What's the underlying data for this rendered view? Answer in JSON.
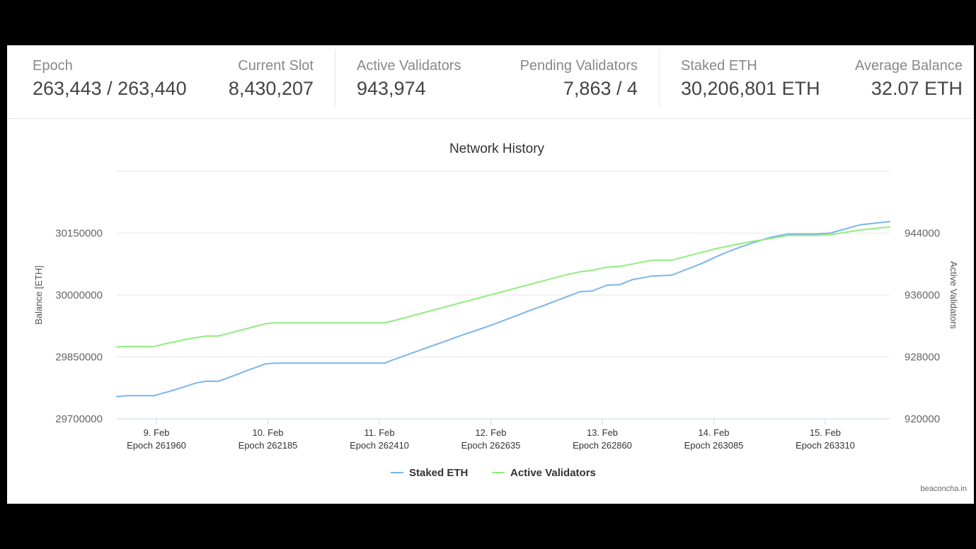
{
  "stats": [
    {
      "label": "Epoch",
      "value": "263,443 / 263,440",
      "x": 36,
      "align": "left"
    },
    {
      "label": "Current Slot",
      "value": "8,430,207",
      "x": 433,
      "align": "right"
    },
    {
      "label": "Active Validators",
      "value": "943,974",
      "x": 494,
      "align": "left"
    },
    {
      "label": "Pending Validators",
      "value": "7,863 / 4",
      "x": 891,
      "align": "right"
    },
    {
      "label": "Staked ETH",
      "value": "30,206,801 ETH",
      "x": 952,
      "align": "left"
    },
    {
      "label": "Average Balance",
      "value": "32.07 ETH",
      "x": 1350,
      "align": "right"
    }
  ],
  "credit": "beaconcha.in",
  "chart_data": {
    "type": "line",
    "title": "Network History",
    "ylabel": "Balance [ETH]",
    "y2label": "Active Validators",
    "ylim": [
      29700000,
      30300000
    ],
    "y2lim": [
      920000,
      952000
    ],
    "yticks": [
      29700000,
      29850000,
      30000000,
      30150000
    ],
    "y2ticks": [
      920000,
      928000,
      936000,
      944000
    ],
    "xlim": [
      261880,
      263440
    ],
    "xticks": [
      {
        "epoch": 261960,
        "line1": "9. Feb",
        "line2": "Epoch 261960"
      },
      {
        "epoch": 262185,
        "line1": "10. Feb",
        "line2": "Epoch 262185"
      },
      {
        "epoch": 262410,
        "line1": "11. Feb",
        "line2": "Epoch 262410"
      },
      {
        "epoch": 262635,
        "line1": "12. Feb",
        "line2": "Epoch 262635"
      },
      {
        "epoch": 262860,
        "line1": "13. Feb",
        "line2": "Epoch 262860"
      },
      {
        "epoch": 263085,
        "line1": "14. Feb",
        "line2": "Epoch 263085"
      },
      {
        "epoch": 263310,
        "line1": "15. Feb",
        "line2": "Epoch 263310"
      }
    ],
    "grid": true,
    "legend_position": "bottom-center",
    "series": [
      {
        "name": "Staked ETH",
        "axis": "left",
        "color": "#7cb5ec",
        "x": [
          261880,
          261900,
          261955,
          261985,
          262015,
          262040,
          262060,
          262085,
          262115,
          262145,
          262180,
          262200,
          262420,
          262440,
          262475,
          262510,
          262545,
          262575,
          262610,
          262645,
          262680,
          262715,
          262745,
          262780,
          262815,
          262840,
          262870,
          262895,
          262920,
          262960,
          263000,
          263030,
          263060,
          263090,
          263120,
          263160,
          263200,
          263235,
          263290,
          263320,
          263380,
          263440
        ],
        "y": [
          29754000,
          29756000,
          29756000,
          29766000,
          29777000,
          29787000,
          29791000,
          29791000,
          29804000,
          29818000,
          29833000,
          29835000,
          29835000,
          29844000,
          29859000,
          29874000,
          29889000,
          29902000,
          29916000,
          29931000,
          29947000,
          29963000,
          29976000,
          29992000,
          30008000,
          30010000,
          30024000,
          30025000,
          30037000,
          30046000,
          30048000,
          30062000,
          30076000,
          30093000,
          30108000,
          30125000,
          30140000,
          30148000,
          30148000,
          30150000,
          30170000,
          30178000
        ]
      },
      {
        "name": "Active Validators",
        "axis": "right",
        "color": "#90ed7d",
        "x": [
          261880,
          261900,
          261955,
          261985,
          262015,
          262040,
          262060,
          262085,
          262115,
          262145,
          262180,
          262200,
          262420,
          262440,
          262475,
          262510,
          262545,
          262575,
          262610,
          262645,
          262680,
          262715,
          262745,
          262780,
          262815,
          262840,
          262870,
          262895,
          262920,
          262960,
          263000,
          263030,
          263060,
          263090,
          263120,
          263160,
          263200,
          263235,
          263290,
          263320,
          263380,
          263440
        ],
        "y": [
          929300,
          929350,
          929350,
          929800,
          930200,
          930500,
          930700,
          930700,
          931200,
          931700,
          932300,
          932400,
          932400,
          932700,
          933300,
          933900,
          934500,
          935000,
          935600,
          936200,
          936800,
          937400,
          937900,
          938500,
          939000,
          939200,
          939600,
          939700,
          940000,
          940500,
          940500,
          941000,
          941500,
          942000,
          942400,
          942900,
          943300,
          943700,
          943700,
          943800,
          944400,
          944800
        ]
      }
    ]
  }
}
